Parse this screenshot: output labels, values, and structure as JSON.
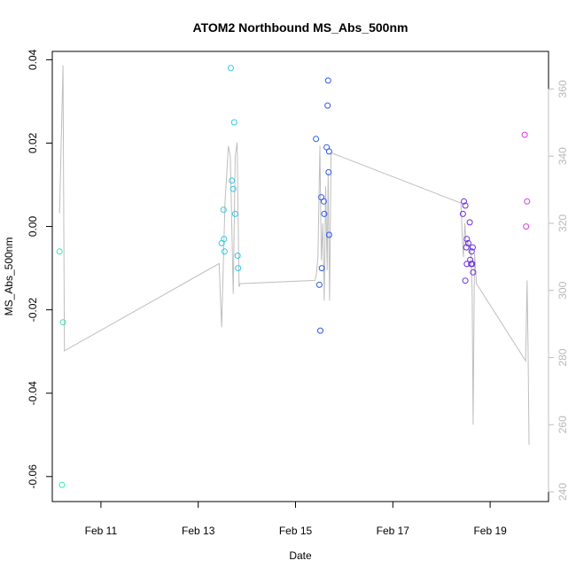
{
  "chart_data": {
    "type": "scatter",
    "title": "ATOM2 Northbound MS_Abs_500nm",
    "xlabel": "Date",
    "ylabel": "MS_Abs_500nm",
    "x_unit": "days in February",
    "xlim": [
      10.0,
      20.2
    ],
    "ylim": [
      -0.066,
      0.042
    ],
    "y_ticks": [
      -0.06,
      -0.04,
      -0.02,
      0.0,
      0.02,
      0.04
    ],
    "y_tick_labels": [
      "-0.06",
      "-0.04",
      "-0.02",
      "0.00",
      "0.02",
      "0.04"
    ],
    "x_ticks": [
      11,
      13,
      15,
      17,
      19
    ],
    "x_tick_labels": [
      "Feb 11",
      "Feb 13",
      "Feb 15",
      "Feb 17",
      "Feb 19"
    ],
    "y2_ticks": [
      240,
      260,
      280,
      300,
      320,
      340,
      360
    ],
    "y2_tick_labels": [
      "240",
      "260",
      "280",
      "300",
      "320",
      "340",
      "360"
    ],
    "y2lim": [
      237.1,
      371.2
    ],
    "grid": false,
    "points": [
      {
        "x": 10.15,
        "y": -0.006,
        "color": "#2fe8a8"
      },
      {
        "x": 10.22,
        "y": -0.023,
        "color": "#2fe8a8"
      },
      {
        "x": 10.2,
        "y": -0.062,
        "color": "#2fe8a8"
      },
      {
        "x": 13.67,
        "y": 0.038,
        "color": "#2ec7e6"
      },
      {
        "x": 13.74,
        "y": 0.025,
        "color": "#2ec7e6"
      },
      {
        "x": 13.69,
        "y": 0.011,
        "color": "#2ec7e6"
      },
      {
        "x": 13.72,
        "y": 0.009,
        "color": "#2ec7e6"
      },
      {
        "x": 13.52,
        "y": 0.004,
        "color": "#2ec7e6"
      },
      {
        "x": 13.76,
        "y": 0.003,
        "color": "#2ec7e6"
      },
      {
        "x": 13.53,
        "y": -0.003,
        "color": "#2ec7e6"
      },
      {
        "x": 13.48,
        "y": -0.004,
        "color": "#2ec7e6"
      },
      {
        "x": 13.54,
        "y": -0.006,
        "color": "#2ec7e6"
      },
      {
        "x": 13.81,
        "y": -0.007,
        "color": "#2ec7e6"
      },
      {
        "x": 13.82,
        "y": -0.01,
        "color": "#2ec7e6"
      },
      {
        "x": 15.67,
        "y": 0.035,
        "color": "#2f5be6"
      },
      {
        "x": 15.66,
        "y": 0.029,
        "color": "#2f5be6"
      },
      {
        "x": 15.42,
        "y": 0.021,
        "color": "#2f5be6"
      },
      {
        "x": 15.64,
        "y": 0.019,
        "color": "#2f5be6"
      },
      {
        "x": 15.69,
        "y": 0.018,
        "color": "#2f5be6"
      },
      {
        "x": 15.68,
        "y": 0.013,
        "color": "#2f5be6"
      },
      {
        "x": 15.53,
        "y": 0.007,
        "color": "#2f5be6"
      },
      {
        "x": 15.58,
        "y": 0.006,
        "color": "#2f5be6"
      },
      {
        "x": 15.59,
        "y": 0.003,
        "color": "#2f5be6"
      },
      {
        "x": 15.69,
        "y": -0.002,
        "color": "#2f5be6"
      },
      {
        "x": 15.54,
        "y": -0.01,
        "color": "#2f5be6"
      },
      {
        "x": 15.49,
        "y": -0.014,
        "color": "#2f5be6"
      },
      {
        "x": 15.51,
        "y": -0.025,
        "color": "#2f5be6"
      },
      {
        "x": 18.46,
        "y": 0.006,
        "color": "#6a2ee0"
      },
      {
        "x": 18.49,
        "y": 0.005,
        "color": "#6a2ee0"
      },
      {
        "x": 18.58,
        "y": 0.001,
        "color": "#6a2ee0"
      },
      {
        "x": 18.44,
        "y": 0.003,
        "color": "#6a2ee0"
      },
      {
        "x": 18.52,
        "y": -0.003,
        "color": "#6a2ee0"
      },
      {
        "x": 18.55,
        "y": -0.004,
        "color": "#6a2ee0"
      },
      {
        "x": 18.51,
        "y": -0.005,
        "color": "#6a2ee0"
      },
      {
        "x": 18.64,
        "y": -0.005,
        "color": "#6a2ee0"
      },
      {
        "x": 18.62,
        "y": -0.006,
        "color": "#6a2ee0"
      },
      {
        "x": 18.59,
        "y": -0.008,
        "color": "#6a2ee0"
      },
      {
        "x": 18.52,
        "y": -0.009,
        "color": "#6a2ee0"
      },
      {
        "x": 18.61,
        "y": -0.009,
        "color": "#6a2ee0"
      },
      {
        "x": 18.63,
        "y": -0.009,
        "color": "#6a2ee0"
      },
      {
        "x": 18.65,
        "y": -0.011,
        "color": "#6a2ee0"
      },
      {
        "x": 18.49,
        "y": -0.013,
        "color": "#6a2ee0"
      },
      {
        "x": 19.71,
        "y": 0.022,
        "color": "#d63ce0"
      },
      {
        "x": 19.76,
        "y": 0.006,
        "color": "#d63ce0"
      },
      {
        "x": 19.74,
        "y": 0.0,
        "color": "#d63ce0"
      }
    ],
    "secondary_line": {
      "axis": "right",
      "color": "#bebebe",
      "x": [
        10.15,
        10.22,
        10.25,
        13.43,
        13.48,
        13.55,
        13.62,
        13.66,
        13.72,
        13.76,
        13.8,
        13.84,
        13.86,
        15.4,
        15.43,
        15.46,
        15.5,
        15.53,
        15.56,
        15.59,
        15.62,
        15.65,
        15.67,
        15.7,
        15.73,
        18.4,
        18.43,
        18.45,
        18.48,
        18.51,
        18.54,
        18.57,
        18.6,
        18.63,
        18.65,
        18.68,
        18.72,
        19.73,
        19.76,
        19.78,
        19.8
      ],
      "y": [
        323,
        367,
        282,
        308,
        289,
        326,
        343,
        340,
        299,
        340,
        344,
        301,
        302,
        303,
        305,
        310,
        343,
        309,
        320,
        297,
        331,
        306,
        335,
        297,
        341,
        326,
        315,
        310,
        320,
        313,
        315,
        311,
        313,
        300,
        260,
        311,
        302,
        279,
        303,
        283,
        254
      ]
    }
  }
}
